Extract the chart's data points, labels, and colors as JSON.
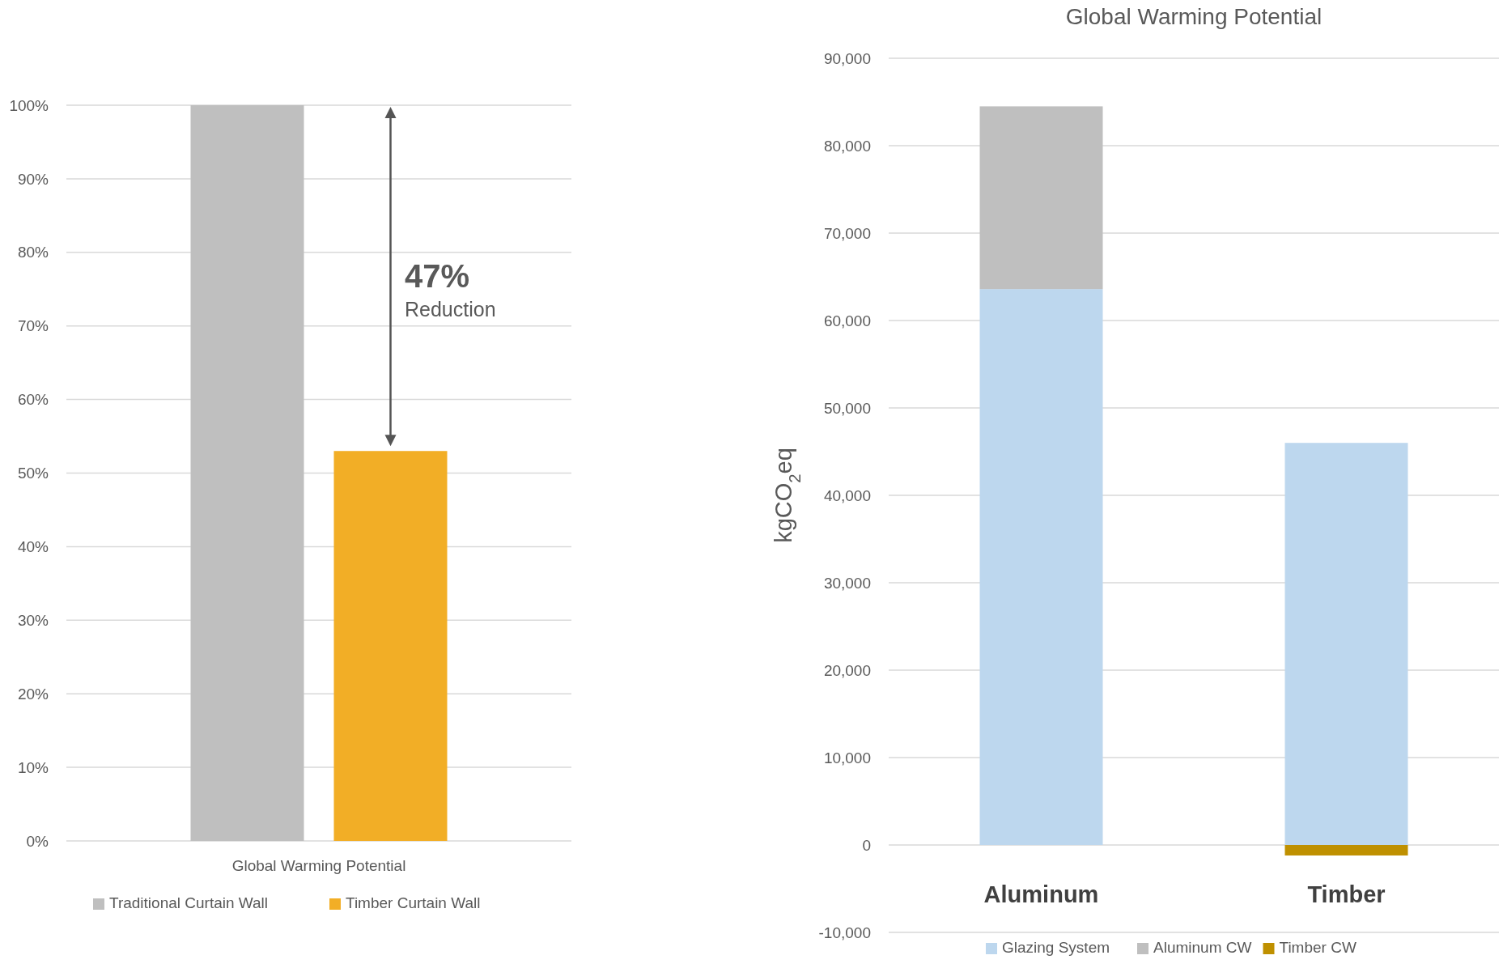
{
  "chart_data": [
    {
      "type": "bar",
      "categories": [
        "Global Warming Potential"
      ],
      "series": [
        {
          "name": "Traditional Curtain Wall",
          "color": "#bfbfbf",
          "values": [
            100
          ]
        },
        {
          "name": "Timber Curtain Wall",
          "color": "#f2ae26",
          "values": [
            53
          ]
        }
      ],
      "ylim": [
        0,
        100
      ],
      "yticks": [
        {
          "value": 0,
          "label": "0%"
        },
        {
          "value": 10,
          "label": "10%"
        },
        {
          "value": 20,
          "label": "20%"
        },
        {
          "value": 30,
          "label": "30%"
        },
        {
          "value": 40,
          "label": "40%"
        },
        {
          "value": 50,
          "label": "50%"
        },
        {
          "value": 60,
          "label": "60%"
        },
        {
          "value": 70,
          "label": "70%"
        },
        {
          "value": 80,
          "label": "80%"
        },
        {
          "value": 90,
          "label": "90%"
        },
        {
          "value": 100,
          "label": "100%"
        }
      ],
      "grid": "y",
      "legend": "bottom",
      "annotations": [
        "47%",
        "Reduction"
      ]
    },
    {
      "type": "bar",
      "title": "Global Warming Potential",
      "ylabel": "kgCO$_{2}$eq",
      "stacked": true,
      "categories": [
        "Aluminum",
        "Timber"
      ],
      "series": [
        {
          "name": "Glazing System",
          "color": "#bdd7ee",
          "values": [
            63600,
            46000
          ]
        },
        {
          "name": "Aluminum CW",
          "color": "#bfbfbf",
          "values": [
            20900,
            null
          ]
        },
        {
          "name": "Timber CW",
          "color": "#bf9000",
          "values": [
            null,
            -1200
          ]
        }
      ],
      "ylim": [
        -10000,
        90000
      ],
      "yticks": [
        {
          "value": -10000,
          "label": "-10,000"
        },
        {
          "value": 0,
          "label": "0"
        },
        {
          "value": 10000,
          "label": "10,000"
        },
        {
          "value": 20000,
          "label": "20,000"
        },
        {
          "value": 30000,
          "label": "30,000"
        },
        {
          "value": 40000,
          "label": "40,000"
        },
        {
          "value": 50000,
          "label": "50,000"
        },
        {
          "value": 60000,
          "label": "60,000"
        },
        {
          "value": 70000,
          "label": "70,000"
        },
        {
          "value": 80000,
          "label": "80,000"
        },
        {
          "value": 90000,
          "label": "90,000"
        }
      ],
      "grid": "y",
      "legend": "bottom"
    }
  ]
}
